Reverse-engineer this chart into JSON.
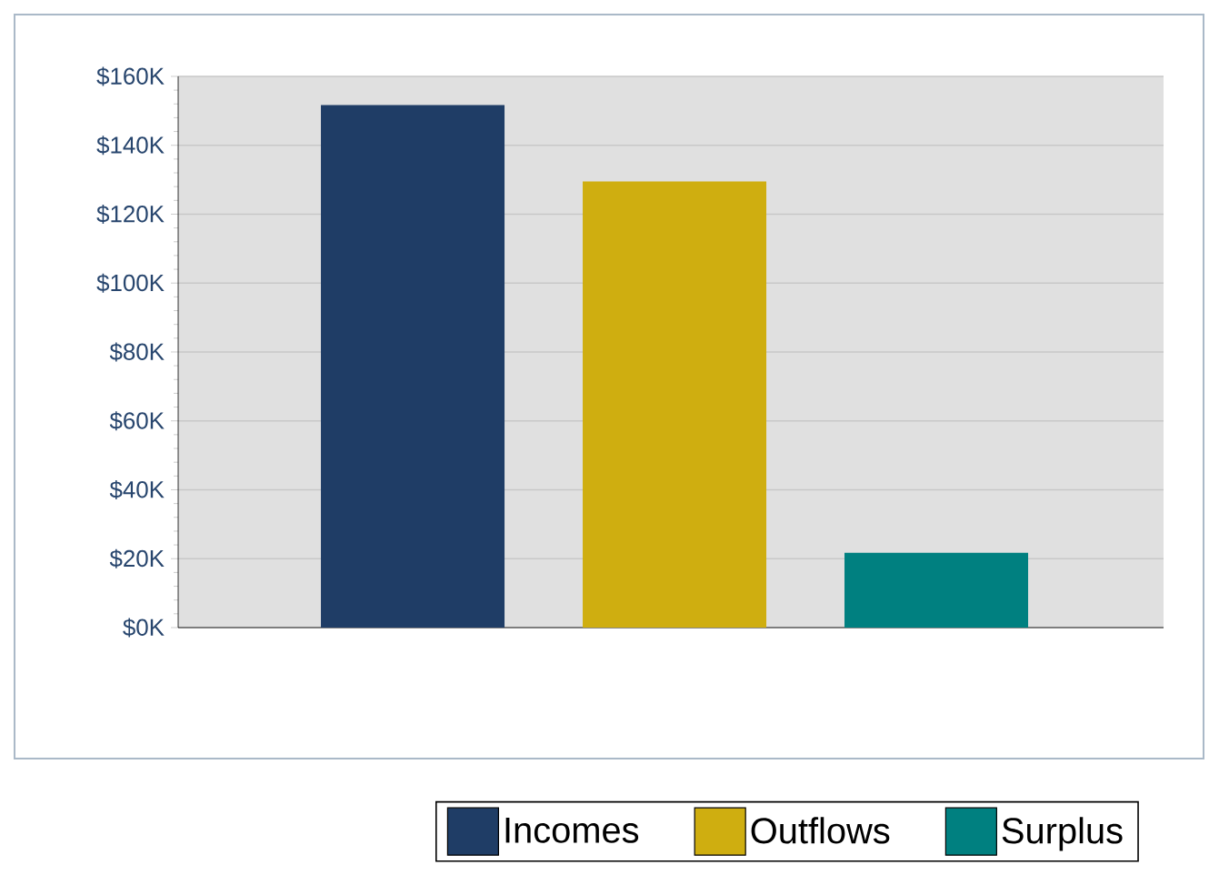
{
  "chart_data": {
    "type": "bar",
    "categories": [
      null
    ],
    "series": [
      {
        "name": "Incomes",
        "color": "#1f3d66",
        "values": [
          151700
        ]
      },
      {
        "name": "Outflows",
        "color": "#cfae10",
        "values": [
          129500
        ]
      },
      {
        "name": "Surplus",
        "color": "#008080",
        "values": [
          21700
        ]
      }
    ],
    "ylim": [
      0,
      160000
    ],
    "yticks": [
      {
        "value": 0,
        "label": "$0K"
      },
      {
        "value": 20000,
        "label": "$20K"
      },
      {
        "value": 40000,
        "label": "$40K"
      },
      {
        "value": 60000,
        "label": "$60K"
      },
      {
        "value": 80000,
        "label": "$80K"
      },
      {
        "value": 100000,
        "label": "$100K"
      },
      {
        "value": 120000,
        "label": "$120K"
      },
      {
        "value": 140000,
        "label": "$140K"
      },
      {
        "value": 160000,
        "label": "$160K"
      }
    ],
    "grid": "y",
    "legend": "bottom"
  }
}
